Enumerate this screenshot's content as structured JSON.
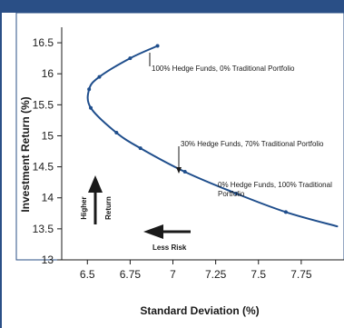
{
  "chart_data": {
    "type": "line",
    "title": "",
    "xlabel": "Standard Deviation (%)",
    "ylabel": "Investment Return (%)",
    "xlim": [
      6.35,
      8.0
    ],
    "ylim": [
      13,
      16.75
    ],
    "x_ticks": [
      6.5,
      6.75,
      7,
      7.25,
      7.5,
      7.75
    ],
    "x_tick_labels": [
      "6.5",
      "6.75",
      "7",
      "7.25",
      "7.5",
      "7.75"
    ],
    "y_ticks": [
      13,
      13.5,
      14,
      14.5,
      15,
      15.5,
      16,
      16.5
    ],
    "y_tick_labels": [
      "13",
      "13.5",
      "14",
      "14.5",
      "15",
      "15.5",
      "16",
      "16.5"
    ],
    "grid": false,
    "colors": {
      "curve": "#1f4e8c",
      "frame": "#2a4f86",
      "text": "#1a1a1a"
    },
    "series": [
      {
        "name": "",
        "x": [
          6.91,
          6.75,
          6.57,
          6.51,
          6.52,
          6.67,
          6.81,
          7.07,
          7.37,
          7.66
        ],
        "y": [
          16.45,
          16.25,
          15.95,
          15.75,
          15.45,
          15.05,
          14.8,
          14.42,
          14.07,
          13.77
        ],
        "line_end": {
          "x": 7.96,
          "y": 13.54
        }
      }
    ],
    "annotations": [
      {
        "text": "100% Hedge Funds, 0% Traditional Portfolio",
        "x": 6.91,
        "y": 16.45
      },
      {
        "text": "30% Hedge Funds, 70% Traditional Portfolio",
        "x": 7.07,
        "y": 14.42
      },
      {
        "text": "0% Hedge Funds, 100% Traditional Portfolio",
        "x": 7.96,
        "y": 13.54
      }
    ],
    "indicators": {
      "higher_return": [
        "Higher",
        "Return"
      ],
      "less_risk": "Less Risk"
    }
  }
}
